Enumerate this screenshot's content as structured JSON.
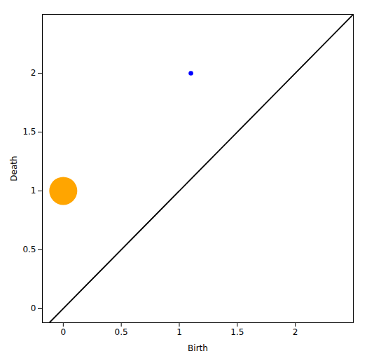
{
  "chart_data": {
    "type": "scatter",
    "xlabel": "Birth",
    "ylabel": "Death",
    "x": [
      0.0,
      1.1
    ],
    "values": [
      1.0,
      2.0
    ],
    "colors": [
      "#FFA500",
      "#0000FF"
    ],
    "sizes": [
      900,
      25
    ],
    "reference_line": {
      "x": [
        -0.12,
        2.5
      ],
      "y": [
        -0.12,
        2.5
      ],
      "color": "#000000"
    },
    "xlim": [
      -0.18,
      2.5
    ],
    "ylim": [
      -0.12,
      2.5
    ],
    "xticks": [
      0.0,
      0.5,
      1.0,
      1.5,
      2.0
    ],
    "yticks": [
      0.0,
      0.5,
      1.0,
      1.5,
      2.0
    ],
    "grid": false
  }
}
